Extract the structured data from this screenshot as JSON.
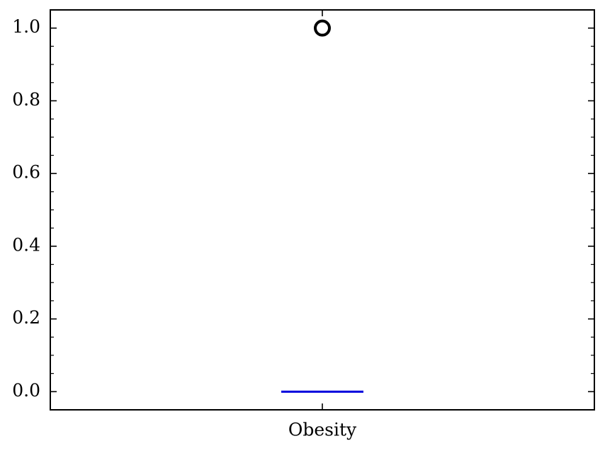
{
  "chart_data": {
    "type": "box",
    "categories": [
      "Obesity"
    ],
    "boxes": [
      {
        "category": "Obesity",
        "q1": 0.0,
        "median": 0.0,
        "q3": 0.0,
        "whisker_low": 0.0,
        "whisker_high": 0.0,
        "outliers": [
          1.0
        ],
        "median_color": "#0000dd"
      }
    ],
    "ylim": [
      -0.05,
      1.05
    ],
    "yticks": [
      0.0,
      0.2,
      0.4,
      0.6,
      0.8,
      1.0
    ],
    "ytick_labels": [
      "0.0",
      "0.2",
      "0.4",
      "0.6",
      "0.8",
      "1.0"
    ],
    "title": "",
    "xlabel": "",
    "ylabel": "",
    "grid": false
  }
}
